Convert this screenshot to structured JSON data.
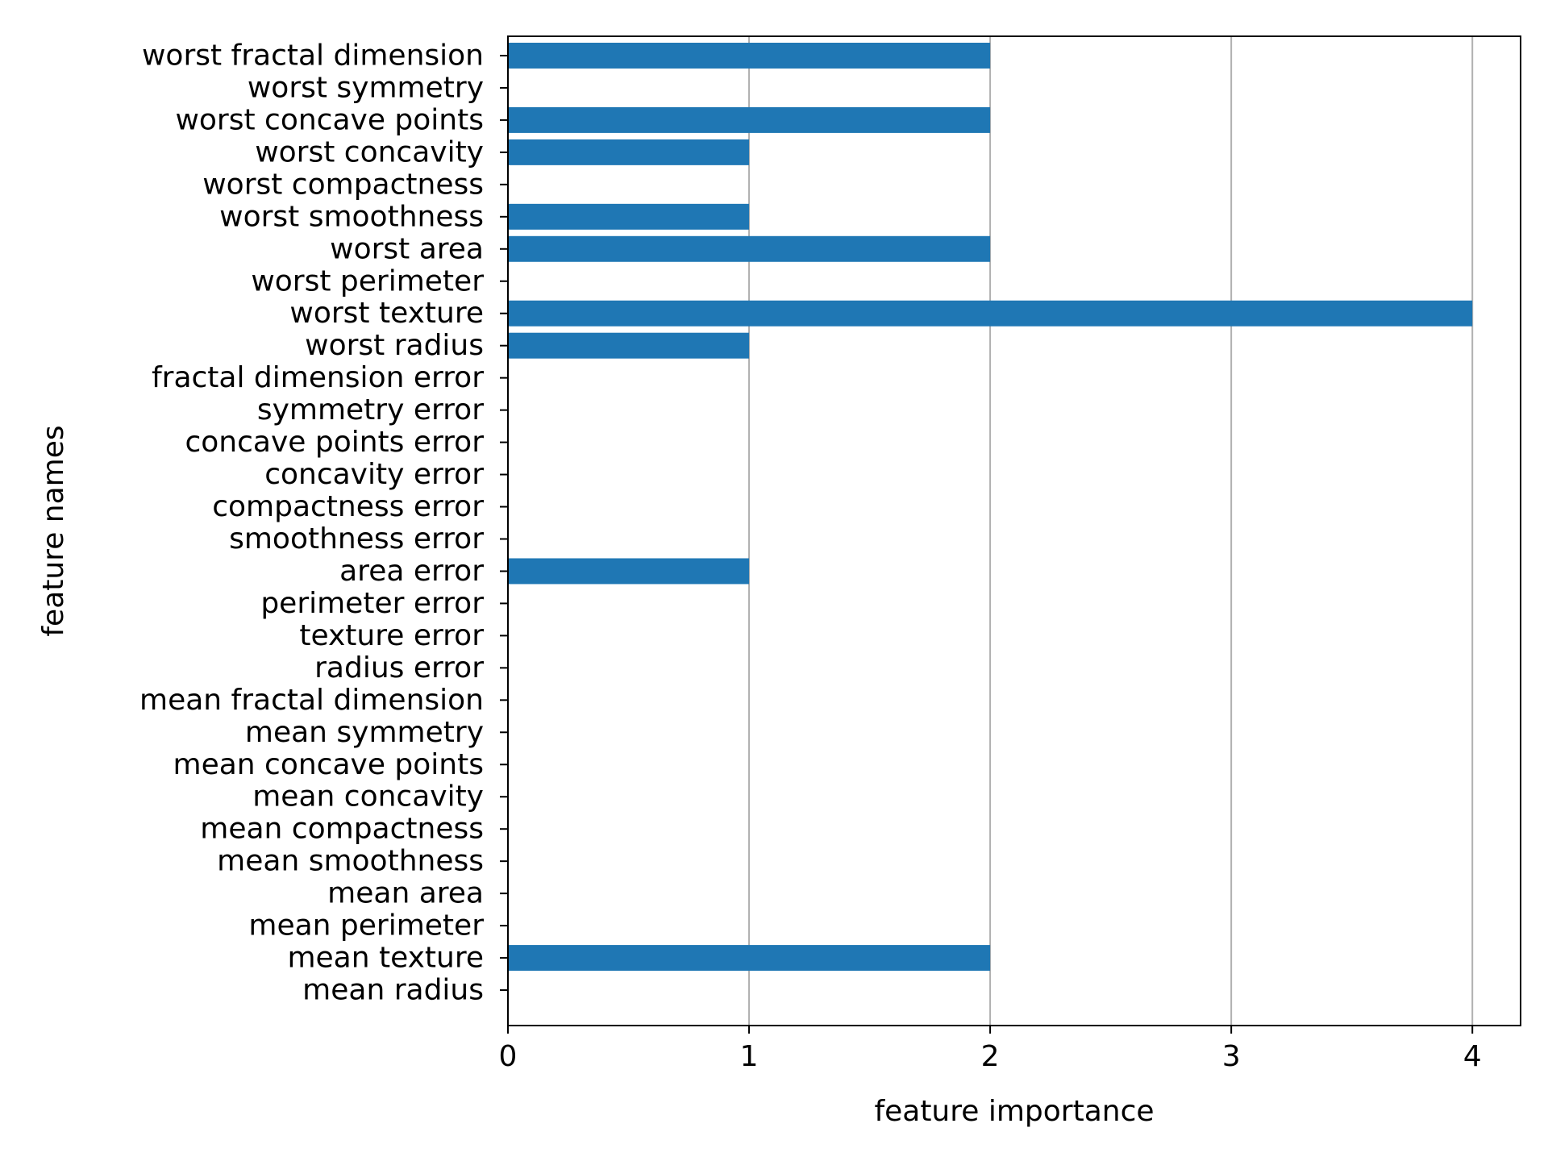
{
  "chart_data": {
    "type": "bar",
    "orientation": "horizontal",
    "categories": [
      "mean radius",
      "mean texture",
      "mean perimeter",
      "mean area",
      "mean smoothness",
      "mean compactness",
      "mean concavity",
      "mean concave points",
      "mean symmetry",
      "mean fractal dimension",
      "radius error",
      "texture error",
      "perimeter error",
      "area error",
      "smoothness error",
      "compactness error",
      "concavity error",
      "concave points error",
      "symmetry error",
      "fractal dimension error",
      "worst radius",
      "worst texture",
      "worst perimeter",
      "worst area",
      "worst smoothness",
      "worst compactness",
      "worst concavity",
      "worst concave points",
      "worst symmetry",
      "worst fractal dimension"
    ],
    "values": [
      0,
      2,
      0,
      0,
      0,
      0,
      0,
      0,
      0,
      0,
      0,
      0,
      0,
      1,
      0,
      0,
      0,
      0,
      0,
      0,
      1,
      4,
      0,
      2,
      1,
      0,
      1,
      2,
      0,
      2
    ],
    "xlabel": "feature importance",
    "ylabel": "feature names",
    "xlim": [
      0,
      4.2
    ],
    "xticks": [
      0,
      1,
      2,
      3,
      4
    ],
    "grid": "x-major",
    "colors": {
      "bar": "#1f77b4",
      "grid": "#b0b0b0",
      "axis": "#000000"
    }
  }
}
